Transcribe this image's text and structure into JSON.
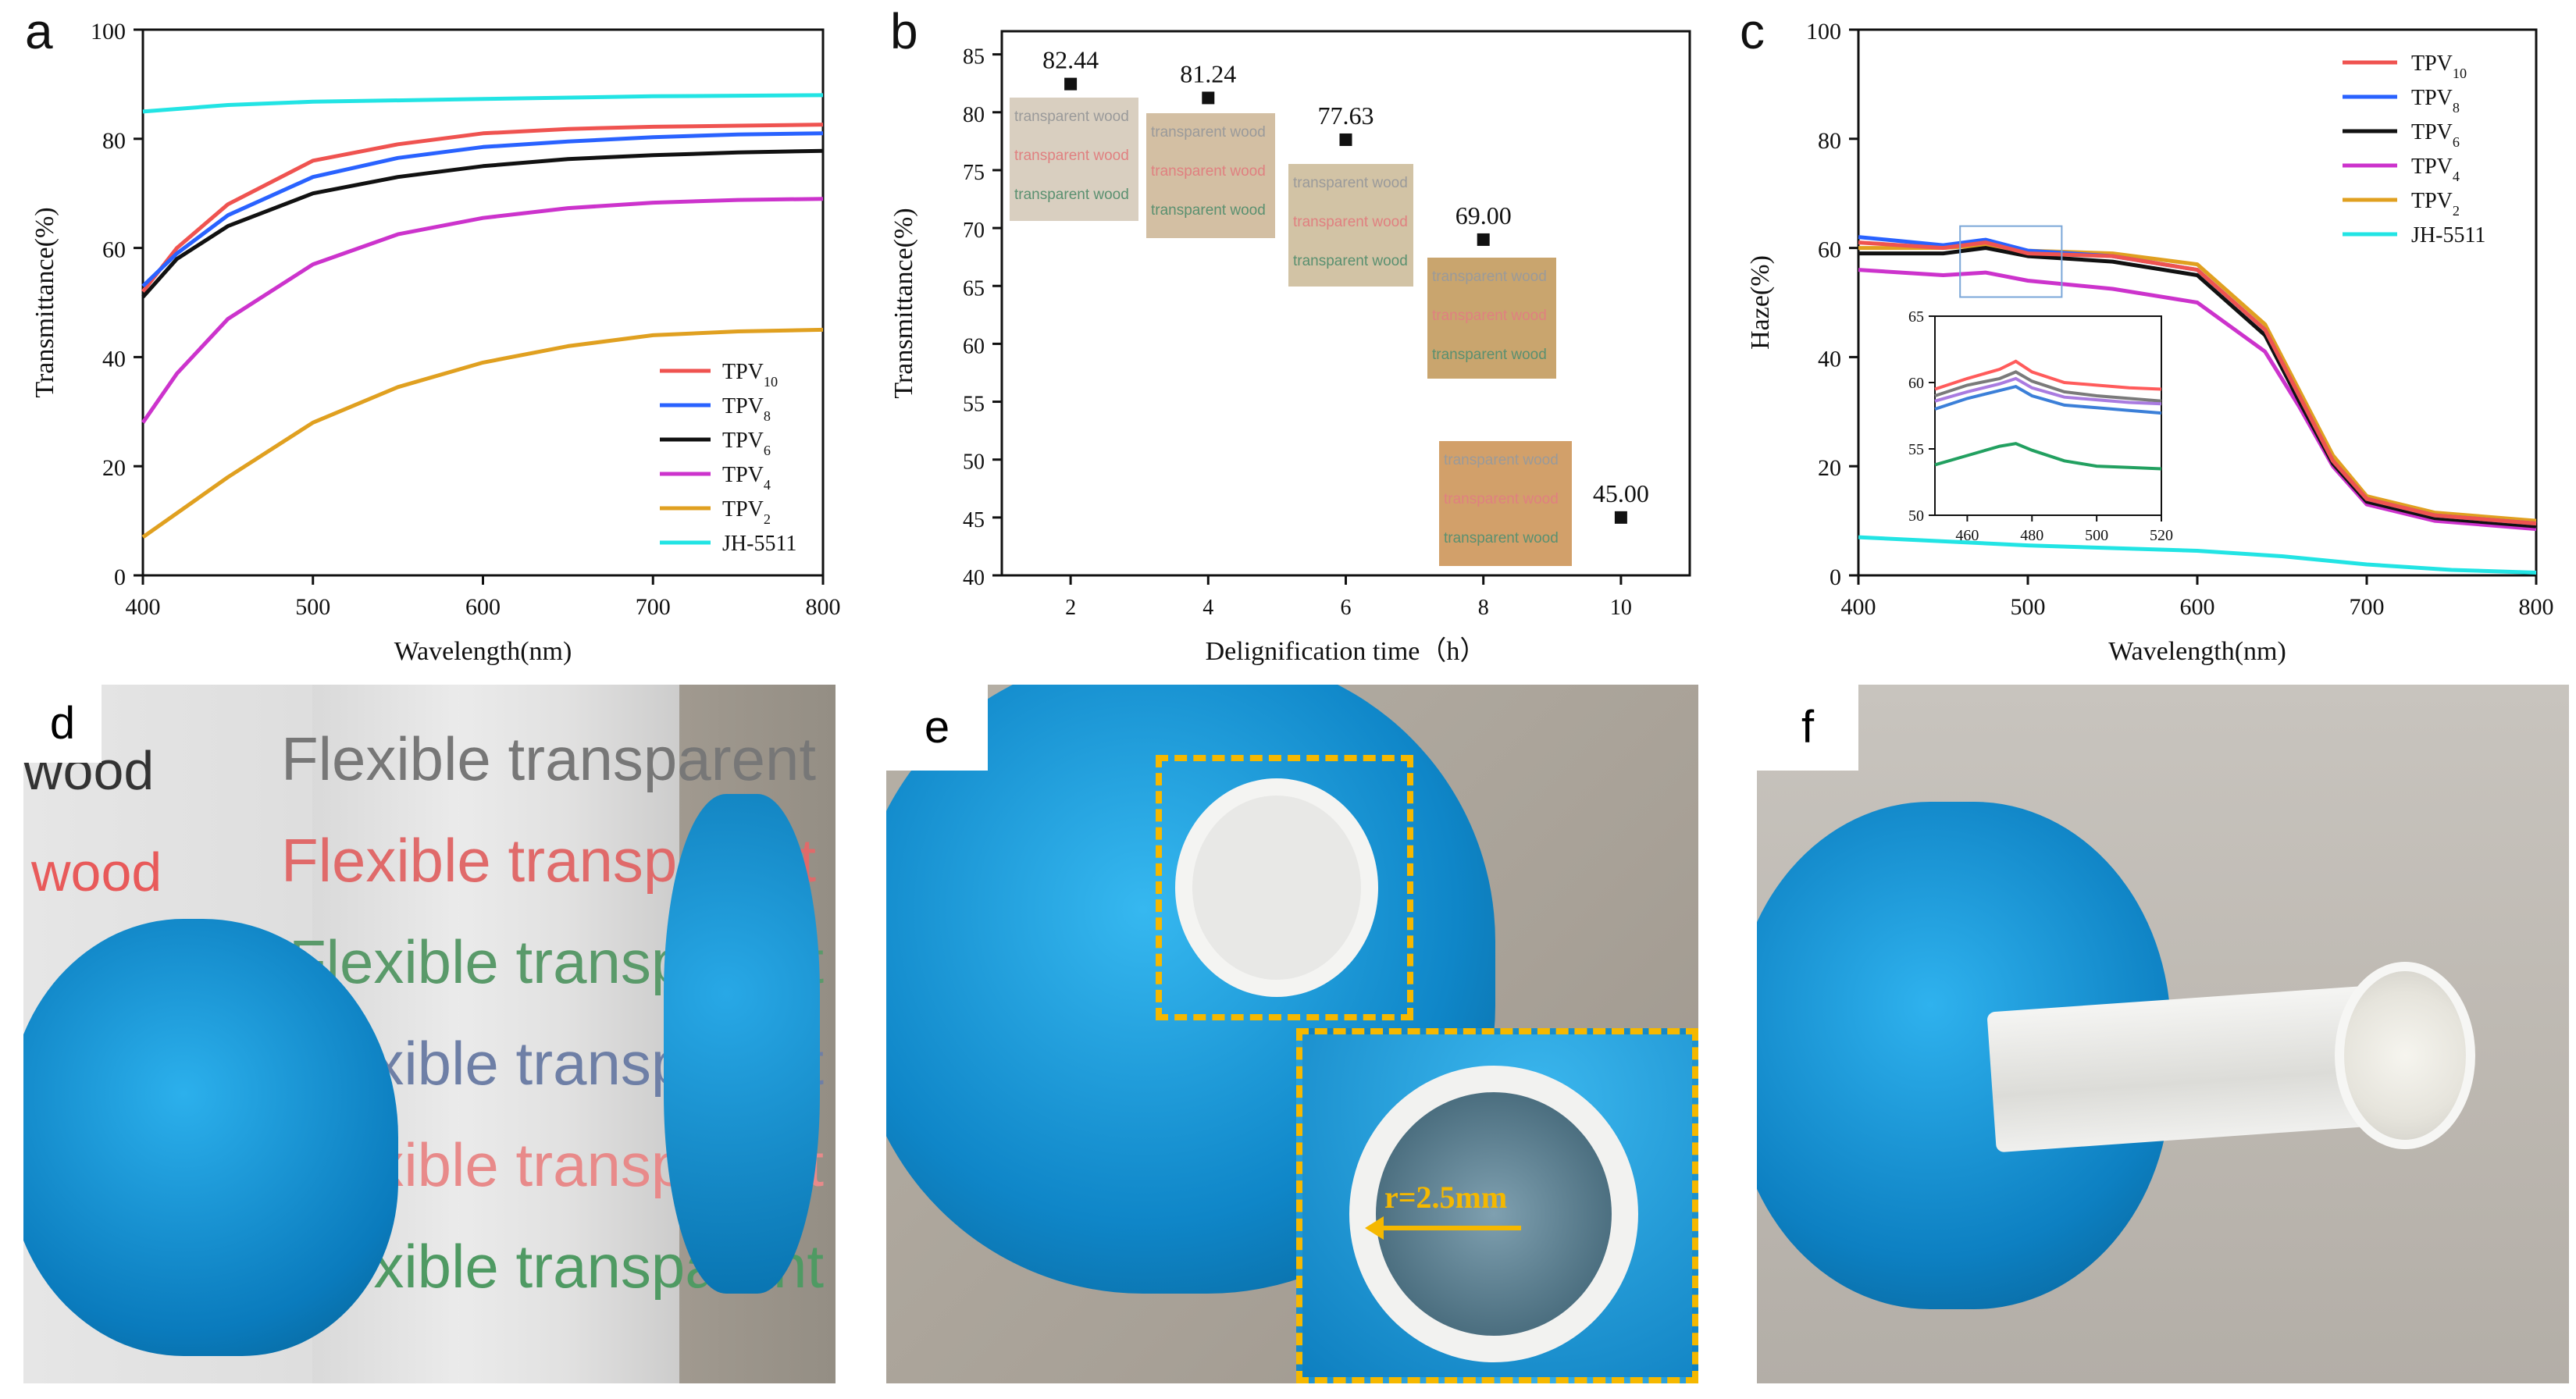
{
  "panel_letters": {
    "a": "a",
    "b": "b",
    "c": "c",
    "d": "d",
    "e": "e",
    "f": "f"
  },
  "colors": {
    "TPV10": "#ef5350",
    "TPV8": "#2962ff",
    "TPV6": "#111111",
    "TPV4": "#cc33cc",
    "TPV2": "#e0a020",
    "JH5511": "#22e4e4",
    "inset_red": "#ff5b5b",
    "inset_gray": "#7a7a7a",
    "inset_violet": "#a97be0",
    "inset_blue": "#3b7fd8",
    "inset_green": "#22a060",
    "photo_bg": "#a8a29a",
    "glove": "#1ea3e6",
    "annot_box": "#f5b800"
  },
  "photo_text": {
    "d_wood": "wood",
    "d_flexible": "Flexible transparent",
    "sample_text": "transparent wood",
    "e_radius": "r=2.5mm"
  },
  "chart_data": [
    {
      "panel": "a",
      "type": "line",
      "xlabel": "Wavelength(nm)",
      "ylabel": "Transmittance(%)",
      "xlim": [
        400,
        800
      ],
      "ylim": [
        0,
        100
      ],
      "xticks": [
        "400",
        "500",
        "600",
        "700",
        "800"
      ],
      "yticks": [
        "0",
        "20",
        "40",
        "60",
        "80",
        "100"
      ],
      "series": [
        {
          "name": "TPV",
          "sub": "10",
          "key": "TPV10",
          "x": [
            400,
            420,
            450,
            500,
            550,
            600,
            650,
            700,
            750,
            800
          ],
          "y": [
            52,
            60,
            68,
            76,
            79,
            81,
            81.8,
            82.2,
            82.4,
            82.6
          ]
        },
        {
          "name": "TPV",
          "sub": "8",
          "key": "TPV8",
          "x": [
            400,
            420,
            450,
            500,
            550,
            600,
            650,
            700,
            750,
            800
          ],
          "y": [
            53,
            59,
            66,
            73,
            76.5,
            78.5,
            79.5,
            80.3,
            80.8,
            81
          ]
        },
        {
          "name": "TPV",
          "sub": "6",
          "key": "TPV6",
          "x": [
            400,
            420,
            450,
            500,
            550,
            600,
            650,
            700,
            750,
            800
          ],
          "y": [
            51,
            58,
            64,
            70,
            73,
            75,
            76.3,
            77,
            77.5,
            77.8
          ]
        },
        {
          "name": "TPV",
          "sub": "4",
          "key": "TPV4",
          "x": [
            400,
            420,
            450,
            500,
            550,
            600,
            650,
            700,
            750,
            800
          ],
          "y": [
            28,
            37,
            47,
            57,
            62.5,
            65.5,
            67.3,
            68.3,
            68.8,
            69
          ]
        },
        {
          "name": "TPV",
          "sub": "2",
          "key": "TPV2",
          "x": [
            400,
            450,
            500,
            550,
            600,
            650,
            700,
            750,
            800
          ],
          "y": [
            7,
            18,
            28,
            34.5,
            39,
            42,
            44,
            44.7,
            45
          ]
        },
        {
          "name": "JH-5511",
          "sub": "",
          "key": "JH5511",
          "x": [
            400,
            450,
            500,
            600,
            700,
            800
          ],
          "y": [
            85,
            86.2,
            86.8,
            87.3,
            87.8,
            88
          ]
        }
      ]
    },
    {
      "panel": "b",
      "type": "scatter",
      "xlabel": "Delignification time（h）",
      "ylabel": "Transmittance(%)",
      "xlim": [
        1,
        11
      ],
      "ylim": [
        40,
        87
      ],
      "xticks": [
        "2",
        "4",
        "6",
        "8",
        "10"
      ],
      "yticks": [
        "40",
        "45",
        "50",
        "55",
        "60",
        "65",
        "70",
        "75",
        "80",
        "85"
      ],
      "x": [
        2,
        4,
        6,
        8,
        10
      ],
      "y": [
        82.44,
        81.24,
        77.63,
        69.0,
        45.0
      ],
      "labels": [
        "82.44",
        "81.24",
        "77.63",
        "69.00",
        "45.00"
      ]
    },
    {
      "panel": "c",
      "type": "line",
      "xlabel": "Wavelength(nm)",
      "ylabel": "Haze(%)",
      "xlim": [
        400,
        800
      ],
      "ylim": [
        0,
        100
      ],
      "xticks": [
        "400",
        "500",
        "600",
        "700",
        "800"
      ],
      "yticks": [
        "0",
        "20",
        "40",
        "60",
        "80",
        "100"
      ],
      "series": [
        {
          "name": "TPV",
          "sub": "10",
          "key": "TPV10",
          "x": [
            400,
            450,
            475,
            500,
            550,
            600,
            640,
            660,
            680,
            700,
            740,
            800
          ],
          "y": [
            61,
            60,
            61,
            59,
            58.5,
            56,
            45,
            33,
            21,
            14,
            11,
            9.5
          ]
        },
        {
          "name": "TPV",
          "sub": "8",
          "key": "TPV8",
          "x": [
            400,
            450,
            475,
            500,
            550,
            600,
            640,
            660,
            680,
            700,
            740,
            800
          ],
          "y": [
            62,
            60.5,
            61.5,
            59.5,
            58.5,
            56,
            45,
            33,
            21,
            14,
            11,
            9.5
          ]
        },
        {
          "name": "TPV",
          "sub": "6",
          "key": "TPV6",
          "x": [
            400,
            450,
            475,
            500,
            550,
            600,
            640,
            660,
            680,
            700,
            740,
            800
          ],
          "y": [
            59,
            59,
            60,
            58.5,
            57.5,
            55,
            44,
            32,
            20.5,
            13.5,
            10.5,
            9
          ]
        },
        {
          "name": "TPV",
          "sub": "4",
          "key": "TPV4",
          "x": [
            400,
            450,
            475,
            500,
            550,
            600,
            640,
            660,
            680,
            700,
            740,
            800
          ],
          "y": [
            56,
            55,
            55.5,
            54,
            52.5,
            50,
            41,
            31,
            20,
            13,
            10,
            8.5
          ]
        },
        {
          "name": "TPV",
          "sub": "2",
          "key": "TPV2",
          "x": [
            400,
            450,
            475,
            500,
            550,
            600,
            640,
            660,
            680,
            700,
            740,
            800
          ],
          "y": [
            60,
            60,
            60.5,
            59.5,
            59,
            57,
            46,
            34,
            22,
            14.5,
            11.5,
            10
          ]
        },
        {
          "name": "JH-5511",
          "sub": "",
          "key": "JH5511",
          "x": [
            400,
            500,
            600,
            650,
            700,
            750,
            800
          ],
          "y": [
            7,
            5.5,
            4.5,
            3.5,
            2,
            1,
            0.5
          ]
        }
      ],
      "inset": {
        "xlim": [
          450,
          520
        ],
        "ylim": [
          50,
          65
        ],
        "xticks": [
          "460",
          "480",
          "500",
          "520"
        ],
        "yticks": [
          "50",
          "55",
          "60",
          "65"
        ],
        "series": [
          {
            "key": "inset_red",
            "x": [
              450,
              460,
              470,
              475,
              480,
              490,
              500,
              510,
              520
            ],
            "y": [
              59.5,
              60.3,
              61,
              61.6,
              60.8,
              60,
              59.8,
              59.6,
              59.5
            ]
          },
          {
            "key": "inset_gray",
            "x": [
              450,
              460,
              470,
              475,
              480,
              490,
              500,
              510,
              520
            ],
            "y": [
              59,
              59.8,
              60.3,
              60.8,
              60.1,
              59.3,
              59,
              58.8,
              58.6
            ]
          },
          {
            "key": "inset_violet",
            "x": [
              450,
              460,
              470,
              475,
              480,
              490,
              500,
              510,
              520
            ],
            "y": [
              58.6,
              59.3,
              59.9,
              60.3,
              59.6,
              58.9,
              58.7,
              58.5,
              58.4
            ]
          },
          {
            "key": "inset_blue",
            "x": [
              450,
              460,
              470,
              475,
              480,
              490,
              500,
              510,
              520
            ],
            "y": [
              58,
              58.8,
              59.4,
              59.7,
              59,
              58.3,
              58.1,
              57.9,
              57.7
            ]
          },
          {
            "key": "inset_green",
            "x": [
              450,
              460,
              470,
              475,
              480,
              490,
              500,
              510,
              520
            ],
            "y": [
              53.8,
              54.5,
              55.2,
              55.4,
              54.9,
              54.1,
              53.7,
              53.6,
              53.5
            ]
          }
        ]
      }
    }
  ]
}
